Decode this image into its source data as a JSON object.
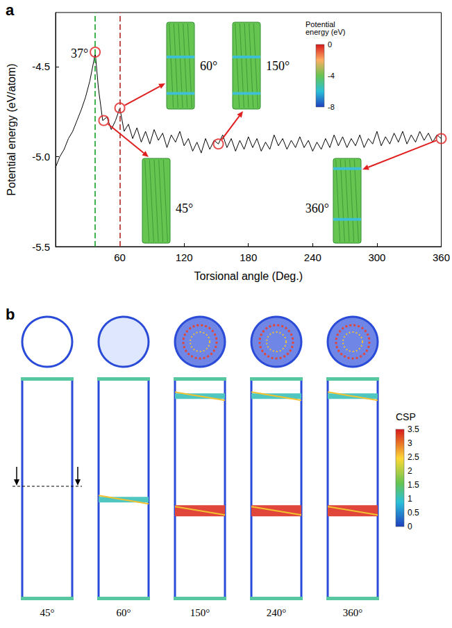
{
  "chart_data": {
    "type": "line",
    "panel_label": "a",
    "x_label": "Torsional angle (Deg.)",
    "y_label": "Potential energy (eV/atom)",
    "x": [
      0,
      4,
      8,
      12,
      16,
      20,
      24,
      28,
      32,
      36,
      37,
      40,
      44,
      48,
      52,
      56,
      60,
      64,
      68,
      72,
      76,
      80,
      84,
      88,
      92,
      96,
      100,
      104,
      108,
      112,
      116,
      120,
      124,
      128,
      132,
      136,
      140,
      144,
      148,
      152,
      156,
      160,
      164,
      168,
      172,
      176,
      180,
      184,
      188,
      192,
      196,
      200,
      204,
      208,
      212,
      216,
      220,
      224,
      228,
      232,
      236,
      240,
      244,
      248,
      252,
      256,
      260,
      264,
      268,
      272,
      276,
      280,
      284,
      288,
      292,
      296,
      300,
      304,
      308,
      312,
      316,
      320,
      324,
      328,
      332,
      336,
      340,
      344,
      348,
      352,
      356,
      360
    ],
    "values": [
      -5.06,
      -5.0,
      -4.96,
      -4.9,
      -4.86,
      -4.8,
      -4.74,
      -4.67,
      -4.58,
      -4.46,
      -4.42,
      -4.62,
      -4.8,
      -4.78,
      -4.85,
      -4.8,
      -4.73,
      -4.86,
      -4.82,
      -4.9,
      -4.84,
      -4.92,
      -4.86,
      -4.93,
      -4.85,
      -4.91,
      -4.87,
      -4.95,
      -4.88,
      -4.92,
      -4.86,
      -4.94,
      -4.9,
      -4.97,
      -4.92,
      -4.98,
      -4.9,
      -4.96,
      -4.91,
      -4.93,
      -4.88,
      -4.95,
      -4.9,
      -4.97,
      -4.91,
      -4.96,
      -4.89,
      -4.95,
      -4.9,
      -4.97,
      -4.92,
      -4.96,
      -4.88,
      -4.94,
      -4.9,
      -4.96,
      -4.91,
      -4.95,
      -4.89,
      -4.95,
      -4.91,
      -4.97,
      -4.92,
      -4.96,
      -4.9,
      -4.95,
      -4.88,
      -4.94,
      -4.89,
      -4.95,
      -4.9,
      -4.94,
      -4.88,
      -4.95,
      -4.9,
      -4.93,
      -4.86,
      -4.94,
      -4.89,
      -4.93,
      -4.87,
      -4.92,
      -4.86,
      -4.93,
      -4.88,
      -4.92,
      -4.86,
      -4.91,
      -4.87,
      -4.92,
      -4.88,
      -4.9
    ],
    "color": "#000000",
    "xlim": [
      0,
      360
    ],
    "xticks": [
      60,
      120,
      180,
      240,
      300,
      360
    ],
    "ylim": [
      -5.5,
      -4.2
    ],
    "yticks": [
      -5.5,
      {
        "value": -5,
        "label": "-5.0"
      },
      -4.5
    ],
    "grid": false,
    "vlines": [
      {
        "x": 37,
        "color": "#3cb44b"
      },
      {
        "x": 60,
        "color": "#c0504d"
      }
    ],
    "annotations": [
      {
        "text": "37°",
        "x": 37,
        "y": -4.42
      }
    ],
    "insets": [
      {
        "label": "60°",
        "x": 60,
        "y": -4.73
      },
      {
        "label": "45°",
        "x": 45,
        "y": -4.8
      },
      {
        "label": "150°",
        "x": 152,
        "y": -4.93
      },
      {
        "label": "360°",
        "x": 360,
        "y": -4.9
      }
    ],
    "colorbar": {
      "title": "Potential energy (eV)",
      "range": [
        -8,
        0
      ],
      "ticks": [
        0,
        -4,
        -8
      ]
    }
  },
  "panel_b": {
    "panel_label": "b",
    "snapshots": [
      "45°",
      "60°",
      "150°",
      "240°",
      "360°"
    ],
    "colorbar": {
      "title": "CSP",
      "range": [
        0,
        3.5
      ],
      "ticks": [
        0,
        0.5,
        1,
        1.5,
        2,
        2.5,
        3,
        3.5
      ]
    }
  }
}
